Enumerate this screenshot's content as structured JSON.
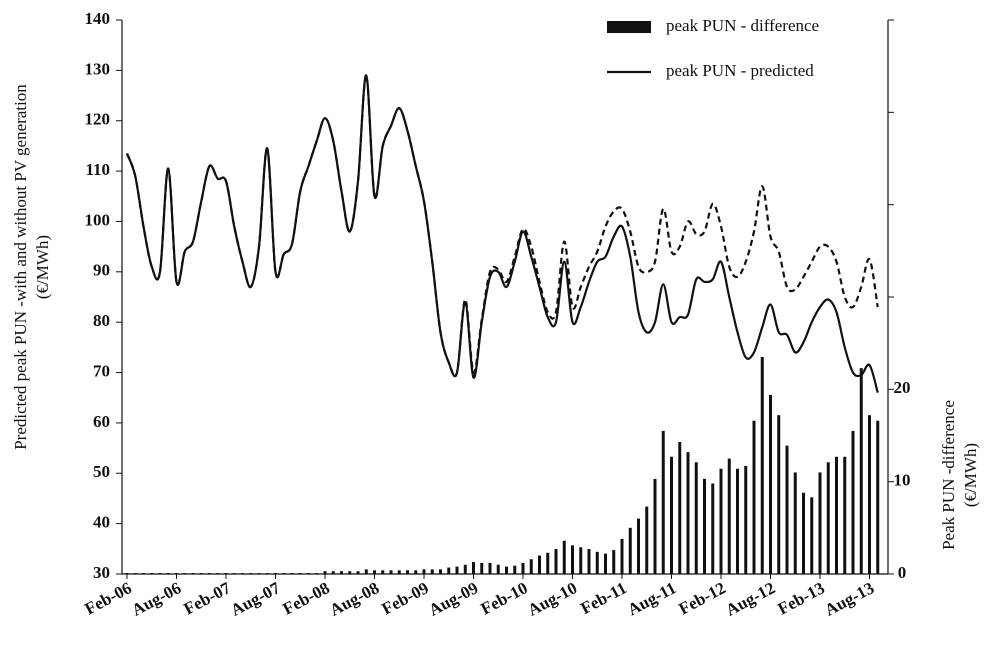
{
  "chart_data": {
    "type": "line",
    "ylabel": [
      "Predicted peak PUN -with and without PV generation",
      "(€/MWh)"
    ],
    "y2label": [
      "Peak PUN -difference",
      "(€/MWh)"
    ],
    "categories": [
      "Feb-06",
      null,
      null,
      null,
      null,
      null,
      "Aug-06",
      null,
      null,
      null,
      null,
      null,
      "Feb-07",
      null,
      null,
      null,
      null,
      null,
      "Aug-07",
      null,
      null,
      null,
      null,
      null,
      "Feb-08",
      null,
      null,
      null,
      null,
      null,
      "Aug-08",
      null,
      null,
      null,
      null,
      null,
      "Feb-09",
      null,
      null,
      null,
      null,
      null,
      "Aug-09",
      null,
      null,
      null,
      null,
      null,
      "Feb-10",
      null,
      null,
      null,
      null,
      null,
      "Aug-10",
      null,
      null,
      null,
      null,
      null,
      "Feb-11",
      null,
      null,
      null,
      null,
      null,
      "Aug-11",
      null,
      null,
      null,
      null,
      null,
      "Feb-12",
      null,
      null,
      null,
      null,
      null,
      "Aug-12",
      null,
      null,
      null,
      null,
      null,
      "Feb-13",
      null,
      null,
      null,
      null,
      null,
      "Aug-13",
      null
    ],
    "ylim": [
      30,
      140
    ],
    "yticks": [
      30,
      40,
      50,
      60,
      70,
      80,
      90,
      100,
      110,
      120,
      130,
      140
    ],
    "y2lim": [
      0,
      60
    ],
    "y2ticks": [
      0,
      10,
      20,
      {
        "value": 30,
        "label": null
      },
      {
        "value": 40,
        "label": null
      },
      {
        "value": 50,
        "label": null
      },
      {
        "value": 60,
        "label": null
      }
    ],
    "legend": "top-right",
    "series": [
      {
        "name": "peak PUN - difference",
        "type": "bar",
        "axis": "y2",
        "color": "#111111",
        "values": [
          0.1,
          0.1,
          0.1,
          0.1,
          0.1,
          0.1,
          0.1,
          0.1,
          0.1,
          0.1,
          0.1,
          0.1,
          0.1,
          0.1,
          0.1,
          0.1,
          0.1,
          0.1,
          0.1,
          0.1,
          0.1,
          0.1,
          0.1,
          0.1,
          0.3,
          0.3,
          0.3,
          0.3,
          0.3,
          0.5,
          0.4,
          0.4,
          0.4,
          0.4,
          0.4,
          0.4,
          0.5,
          0.5,
          0.5,
          0.7,
          0.8,
          1.0,
          1.3,
          1.2,
          1.2,
          1.0,
          0.8,
          0.9,
          1.2,
          1.6,
          2.0,
          2.3,
          2.7,
          3.6,
          3.1,
          2.9,
          2.7,
          2.4,
          2.2,
          2.6,
          3.8,
          5.0,
          6.0,
          7.3,
          10.3,
          15.5,
          12.7,
          14.3,
          13.2,
          12.1,
          10.3,
          9.8,
          11.4,
          12.5,
          11.4,
          11.7,
          16.6,
          23.5,
          19.4,
          17.2,
          13.9,
          11.0,
          8.8,
          8.3,
          11.0,
          12.1,
          12.7,
          12.7,
          15.5,
          22.3,
          17.2,
          16.6
        ]
      },
      {
        "name": "peak PUN - predicted",
        "type": "line",
        "color": "#111111",
        "values": [
          113.5,
          109,
          99,
          91,
          90,
          110.5,
          88,
          94,
          96,
          104,
          111,
          108.5,
          108,
          99,
          92,
          87,
          95,
          114.5,
          90,
          93.5,
          95.5,
          106,
          111,
          116,
          120.5,
          116,
          106,
          98,
          108,
          129,
          105,
          115,
          119,
          122.5,
          118,
          111,
          104,
          92,
          78,
          72,
          70,
          84,
          69,
          80,
          89,
          90,
          87,
          92,
          98,
          93,
          87,
          81,
          80,
          92,
          80,
          83,
          88,
          92,
          93,
          97,
          99,
          93,
          82,
          78,
          80,
          87.5,
          80,
          81,
          81.5,
          88.5,
          88,
          88.5,
          92,
          85,
          78,
          73,
          74,
          79,
          83.5,
          78,
          77.5,
          74,
          76,
          80,
          83,
          84.5,
          82,
          75,
          70,
          69.5,
          71.5,
          66
        ]
      },
      {
        "type": "line",
        "style": "dashed",
        "color": "#111111",
        "values": [
          113.5,
          109,
          99,
          91,
          90,
          110.5,
          88,
          94,
          96,
          104,
          111,
          108.5,
          108,
          99,
          92,
          87,
          95,
          114.5,
          90,
          93.5,
          95.5,
          106,
          111,
          116,
          120.5,
          116,
          106,
          98,
          108,
          129,
          105,
          115,
          119,
          122.5,
          118,
          111,
          104,
          92,
          78,
          72,
          70,
          84.5,
          70,
          80.5,
          90,
          90.5,
          88,
          93,
          98.5,
          95,
          88,
          82,
          82,
          96,
          83,
          87,
          91,
          94,
          99,
          102,
          102.5,
          98,
          91,
          90,
          92,
          102.5,
          94,
          95,
          100,
          97.5,
          98,
          103.5,
          99,
          91,
          89,
          92,
          98,
          107,
          97,
          94,
          87,
          86.5,
          89,
          92,
          95,
          95,
          92,
          85,
          83,
          87,
          92.5,
          83
        ]
      }
    ]
  }
}
